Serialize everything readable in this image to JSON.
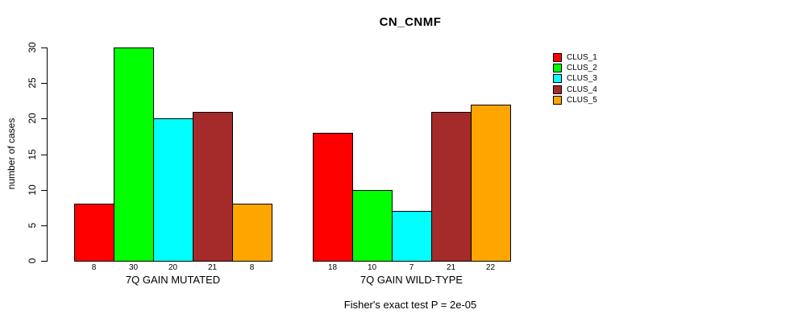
{
  "chart_data": {
    "type": "bar",
    "title": "CN_CNMF",
    "ylabel": "number of cases",
    "xlabel": "",
    "ylim": [
      0,
      30
    ],
    "yticks": [
      0,
      5,
      10,
      15,
      20,
      25,
      30
    ],
    "grid": false,
    "legend_position": "right",
    "background_color": "#ffffff",
    "bar_outline_color": "#000000",
    "categories": [
      "7Q GAIN MUTATED",
      "7Q GAIN WILD-TYPE"
    ],
    "series": [
      {
        "name": "CLUS_1",
        "color": "#ff0000",
        "values": [
          8,
          18
        ]
      },
      {
        "name": "CLUS_2",
        "color": "#00ff00",
        "values": [
          30,
          10
        ]
      },
      {
        "name": "CLUS_3",
        "color": "#00ffff",
        "values": [
          20,
          7
        ]
      },
      {
        "name": "CLUS_4",
        "color": "#a52a2a",
        "values": [
          21,
          21
        ]
      },
      {
        "name": "CLUS_5",
        "color": "#ffa500",
        "values": [
          8,
          22
        ]
      }
    ],
    "bar_value_labels": [
      [
        8,
        30,
        20,
        21,
        8
      ],
      [
        18,
        10,
        7,
        21,
        22
      ]
    ],
    "annotation": "Fisher's exact test P = 2e-05"
  }
}
